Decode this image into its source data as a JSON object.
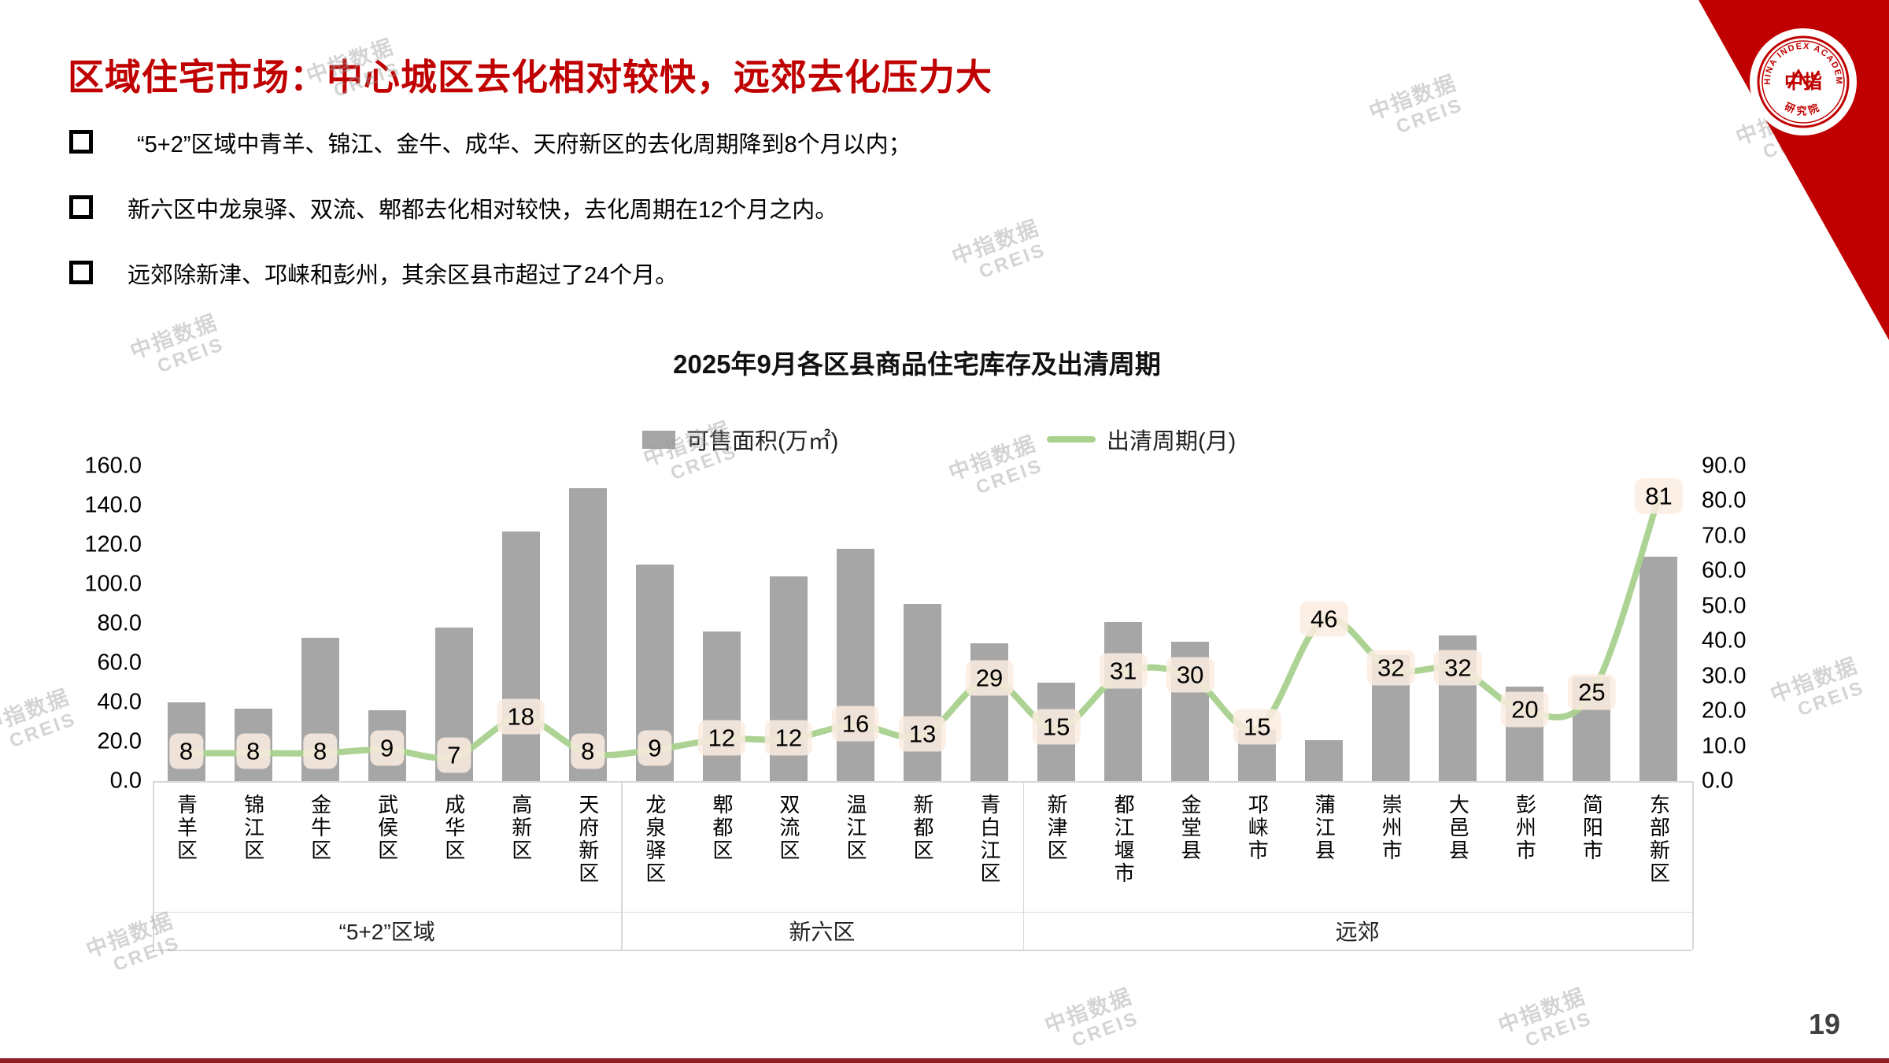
{
  "slide": {
    "title": "区域住宅市场：中心城区去化相对较快，远郊去化压力大",
    "bullets": [
      "“5+2”区域中青羊、锦江、金牛、成华、天府新区的去化周期降到8个月以内；",
      "新六区中龙泉驿、双流、郫都去化相对较快，去化周期在12个月之内。",
      "远郊除新津、邛崃和彭州，其余区县市超过了24个月。"
    ],
    "page_number": "19",
    "watermark_line1": "中指数据",
    "watermark_line2": "CREIS",
    "logo": {
      "ring_text": "CHINA INDEX ACADEMY",
      "center_text": "中指",
      "bottom_text": "研究院"
    }
  },
  "chart_data": {
    "type": "bar",
    "subtype": "bar+line combo, dual axis",
    "title": "2025年9月各区县商品住宅库存及出清周期",
    "legend_position": "top",
    "grid": false,
    "categories": [
      "青羊区",
      "锦江区",
      "金牛区",
      "武侯区",
      "成华区",
      "高新区",
      "天府新区",
      "龙泉驿区",
      "郫都区",
      "双流区",
      "温江区",
      "新都区",
      "青白江区",
      "新津区",
      "都江堰市",
      "金堂县",
      "邛崃市",
      "蒲江县",
      "崇州市",
      "大邑县",
      "彭州市",
      "简阳市",
      "东部新区"
    ],
    "groups": [
      {
        "label": "“5+2”区域",
        "span": 7
      },
      {
        "label": "新六区",
        "span": 6
      },
      {
        "label": "远郊",
        "span": 10
      }
    ],
    "series": [
      {
        "name": "可售面积(万㎡)",
        "type": "bar",
        "axis": "left",
        "color": "#a6a6a6",
        "values": [
          40,
          37,
          73,
          36,
          78,
          127,
          149,
          110,
          76,
          104,
          118,
          90,
          70,
          50,
          81,
          71,
          26,
          21,
          64,
          74,
          48,
          53,
          114
        ]
      },
      {
        "name": "出清周期(月)",
        "type": "line",
        "axis": "right",
        "color": "#a9d18e",
        "data_labels": true,
        "values": [
          8,
          8,
          8,
          9,
          7,
          18,
          8,
          9,
          12,
          12,
          16,
          13,
          29,
          15,
          31,
          30,
          15,
          46,
          32,
          32,
          20,
          25,
          81
        ]
      }
    ],
    "left_axis": {
      "min": 0,
      "max": 160,
      "step": 20,
      "decimals": 1
    },
    "right_axis": {
      "min": 0,
      "max": 90,
      "step": 10,
      "decimals": 1
    },
    "colors": {
      "bar": "#a6a6a6",
      "line": "#a9d18e",
      "label_box": "#fcece1",
      "axis_line": "#d9d9d9"
    }
  }
}
